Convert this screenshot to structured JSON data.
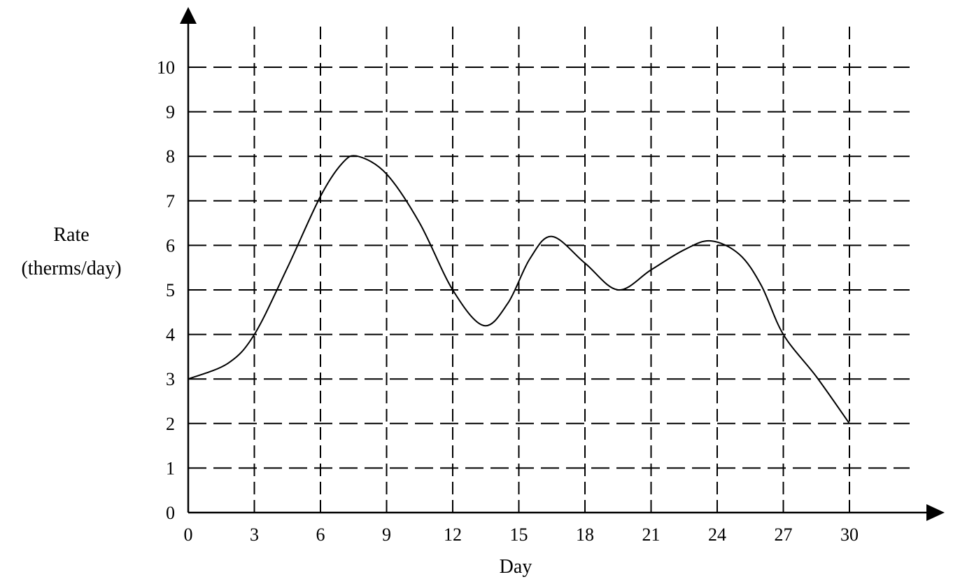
{
  "chart_data": {
    "type": "line",
    "title": "",
    "xlabel": "Day",
    "ylabel_lines": [
      "Rate",
      "(therms/day)"
    ],
    "x_ticks": [
      0,
      3,
      6,
      9,
      12,
      15,
      18,
      21,
      24,
      27,
      30
    ],
    "y_ticks": [
      0,
      1,
      2,
      3,
      4,
      5,
      6,
      7,
      8,
      9,
      10
    ],
    "xlim": [
      0,
      30
    ],
    "ylim": [
      0,
      10
    ],
    "grid": true,
    "grid_style": "dashed",
    "series": [
      {
        "x": [
          0,
          1.8,
          3,
          4.5,
          6,
          7,
          7.7,
          9,
          10.5,
          12,
          13.4,
          14.5,
          15.5,
          16.5,
          18,
          19.5,
          21,
          22.5,
          23.7,
          25,
          26,
          27,
          28.5,
          30
        ],
        "y": [
          3,
          3.35,
          4,
          5.5,
          7.1,
          7.85,
          8,
          7.6,
          6.5,
          5,
          4.2,
          4.7,
          5.7,
          6.2,
          5.6,
          5,
          5.45,
          5.9,
          6.1,
          5.8,
          5.1,
          4,
          3.05,
          2
        ]
      }
    ]
  }
}
